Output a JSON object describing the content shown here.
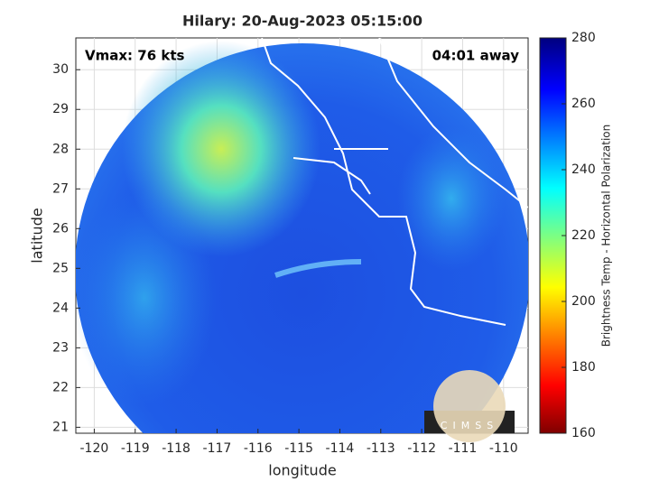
{
  "map": {
    "title": "Hilary: 20-Aug-2023 05:15:00",
    "annotations": {
      "left": "Vmax: 76 kts",
      "right": "04:01 away"
    },
    "x_label": "longitude",
    "y_label": "latitude",
    "xlim": [
      -120.45,
      -109.4
    ],
    "xticks": [
      -120,
      -119,
      -118,
      -117,
      -116,
      -115,
      -114,
      -113,
      -112,
      -111,
      -110
    ],
    "ylim": [
      20.85,
      30.8
    ],
    "yticks": [
      21,
      22,
      23,
      24,
      25,
      26,
      27,
      28,
      29,
      30
    ],
    "colorbar": {
      "label": "Brightness Temp - Horizontal Polarization",
      "lim": [
        160,
        280
      ],
      "ticks": [
        160,
        180,
        200,
        220,
        240,
        260,
        280
      ]
    },
    "logo": "CIMSS",
    "grid": true
  }
}
